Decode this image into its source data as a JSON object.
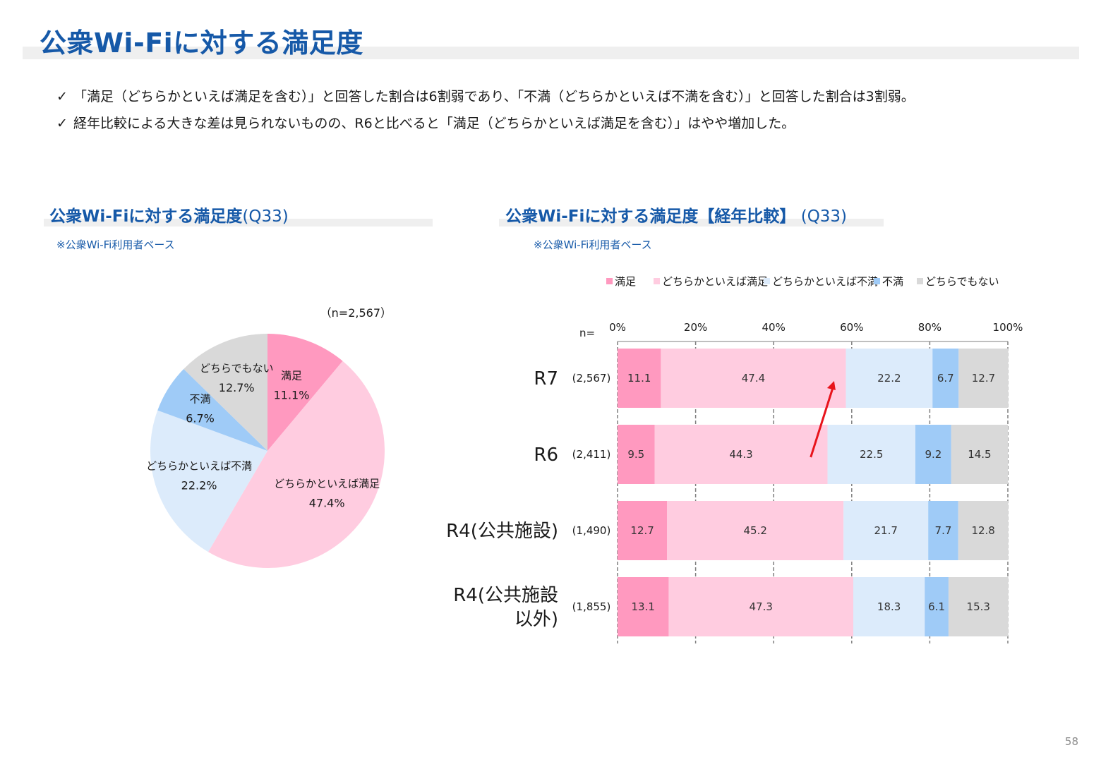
{
  "page": {
    "title": "公衆Wi-Fiに対する満足度",
    "bullets": [
      "「満足（どちらかといえば満足を含む）」と回答した割合は6割弱であり、「不満（どちらかといえば不満を含む）」と回答した割合は3割弱。",
      "経年比較による大きな差は見られないものの、R6と比べると「満足（どちらかといえば満足を含む）」はやや増加した。"
    ],
    "check_mark": "✓",
    "page_number": "58"
  },
  "left_section": {
    "title": "公衆Wi-Fiに対する満足度",
    "question": "(Q33)",
    "base_note": "※公衆Wi-Fi利用者ベース"
  },
  "right_section": {
    "title": "公衆Wi-Fiに対する満足度【経年比較】",
    "question": " (Q33)",
    "base_note": "※公衆Wi-Fi利用者ベース"
  },
  "colors": {
    "title_blue": "#1659a8",
    "satisfied": "#ff99bf",
    "somewhat_satisfied": "#ffcce0",
    "somewhat_dissatisfied": "#dcebfb",
    "dissatisfied": "#9fcbf7",
    "neither": "#d9d9d9",
    "arrow": "#e8141c"
  },
  "chart_data": [
    {
      "type": "pie",
      "n_label": "（n=2,567）",
      "unit": "%",
      "slices": [
        {
          "label": "満足",
          "value": 11.1,
          "color": "#ff99bf",
          "value_text": "11.1%"
        },
        {
          "label": "どちらかといえば満足",
          "value": 47.4,
          "color": "#ffcce0",
          "value_text": "47.4%"
        },
        {
          "label": "どちらかといえば不満",
          "value": 22.2,
          "color": "#dcebfb",
          "value_text": "22.2%"
        },
        {
          "label": "不満",
          "value": 6.7,
          "color": "#9fcbf7",
          "value_text": "6.7%"
        },
        {
          "label": "どちらでもない",
          "value": 12.7,
          "color": "#d9d9d9",
          "value_text": "12.7%"
        }
      ]
    },
    {
      "type": "bar",
      "orientation": "horizontal",
      "stacked": "percent",
      "legend_position": "top",
      "xlim": [
        0,
        100
      ],
      "x_ticks": [
        "0%",
        "20%",
        "40%",
        "60%",
        "80%",
        "100%"
      ],
      "n_header": "n=",
      "categories": [
        "R7",
        "R6",
        "R4(公共施設)",
        "R4(公共施設以外)"
      ],
      "category_lines": [
        [
          "R7"
        ],
        [
          "R6"
        ],
        [
          "R4(公共施設)"
        ],
        [
          "R4(公共施設",
          "以外)"
        ]
      ],
      "n_values": [
        "(2,567)",
        "(2,411)",
        "(1,490)",
        "(1,855)"
      ],
      "series": [
        {
          "name": "満足",
          "color": "#ff99bf",
          "values": [
            11.1,
            9.5,
            12.7,
            13.1
          ]
        },
        {
          "name": "どちらかといえば満足",
          "color": "#ffcce0",
          "values": [
            47.4,
            44.3,
            45.2,
            47.3
          ]
        },
        {
          "name": "どちらかといえば不満",
          "color": "#dcebfb",
          "values": [
            22.2,
            22.5,
            21.7,
            18.3
          ]
        },
        {
          "name": "不満",
          "color": "#9fcbf7",
          "values": [
            6.7,
            9.2,
            7.7,
            6.1
          ]
        },
        {
          "name": "どちらでもない",
          "color": "#d9d9d9",
          "values": [
            12.7,
            14.5,
            12.8,
            15.3
          ]
        }
      ],
      "annotation": {
        "type": "arrow",
        "from_category": "R6",
        "to_category": "R7",
        "color": "#e8141c"
      }
    }
  ]
}
